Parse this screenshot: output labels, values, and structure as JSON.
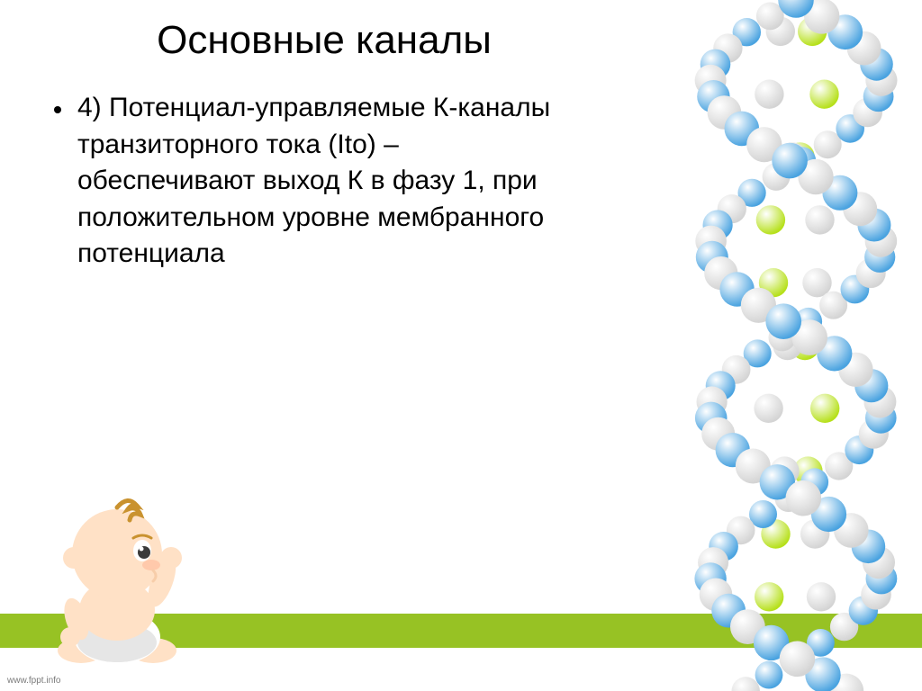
{
  "slide": {
    "title": "Основные каналы",
    "title_fontsize": 44,
    "title_color": "#000000",
    "bullet_text": "4) Потенциал-управляемые К-каналы транзиторного тока (Ito) – обеспечивают выход К в фазу 1, при положительном уровне мембранного потенциала",
    "body_fontsize": 30,
    "body_color": "#000000",
    "footer": "www.fppt.info",
    "background": "#ffffff"
  },
  "green_band": {
    "color": "#97c224",
    "height": 38
  },
  "dna": {
    "ball_colors": {
      "blue": "#4aa3e0",
      "green": "#b6e01b",
      "white_top": "#ffffff",
      "white_bot": "#d4d4d4"
    },
    "ball_radius": 18,
    "strand_balls": 44,
    "rung_rows": 11
  },
  "baby": {
    "skin": "#ffe1c6",
    "skin_shadow": "#f7cda9",
    "hair": "#c9922f",
    "eye": "#3a3a3a",
    "white": "#ffffff",
    "blush": "#ffb99a",
    "diaper": "#ffffff",
    "diaper_shadow": "#e6e6e6"
  }
}
